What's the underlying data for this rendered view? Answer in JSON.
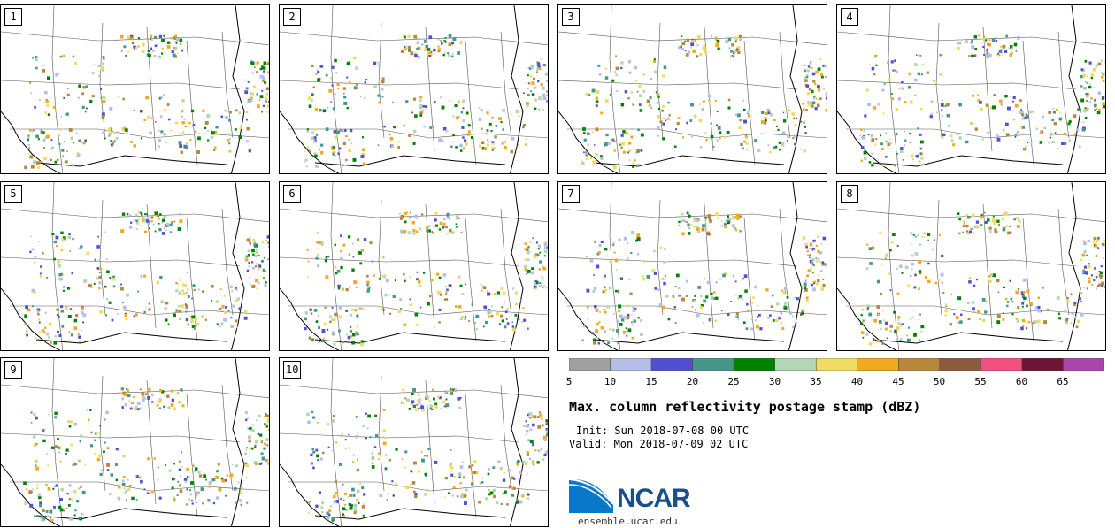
{
  "title": "Max. column reflectivity postage stamp (dBZ)",
  "init_line": "Init: Sun 2018-07-08 00 UTC",
  "valid_line": "Valid: Mon 2018-07-09 02 UTC",
  "logo_text": "NCAR",
  "logo_url": "ensemble.ucar.edu",
  "colorbar": {
    "ticks": [
      "5",
      "10",
      "15",
      "20",
      "25",
      "30",
      "35",
      "40",
      "45",
      "50",
      "55",
      "60",
      "65"
    ],
    "colors": [
      "#a0a0a0",
      "#b4bee6",
      "#5050d2",
      "#46968c",
      "#008200",
      "#b4d7b4",
      "#f0dc64",
      "#f0aa1e",
      "#b9873c",
      "#8c5a3c",
      "#f0507d",
      "#6e1437",
      "#aa46aa"
    ]
  },
  "members": [
    "1",
    "2",
    "3",
    "4",
    "5",
    "6",
    "7",
    "8",
    "9",
    "10"
  ]
}
